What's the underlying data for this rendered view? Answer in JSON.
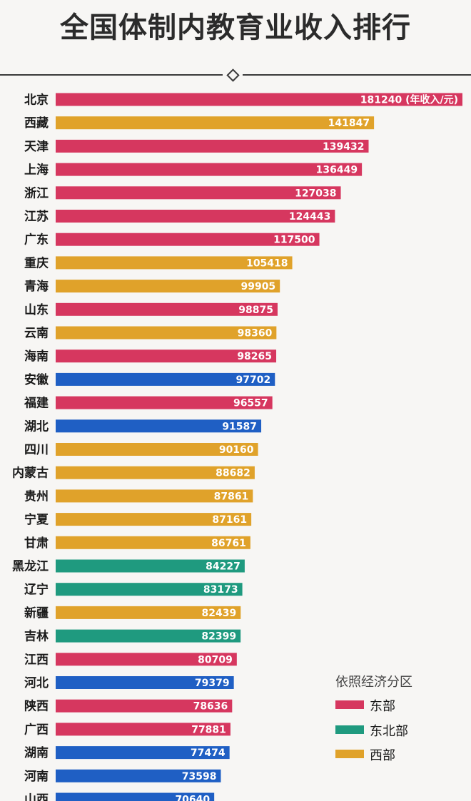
{
  "title": "全国体制内教育业收入排行",
  "colors": {
    "east": "#d6375f",
    "central": "#1f5fc4",
    "northeast": "#1f9a7f",
    "west": "#e0a22a"
  },
  "legend": {
    "title": "依照经济分区",
    "items": [
      {
        "label": "东部",
        "color": "#d6375f"
      },
      {
        "label": "东北部",
        "color": "#1f9a7f"
      },
      {
        "label": "西部",
        "color": "#e0a22a"
      }
    ]
  },
  "chart_data": {
    "type": "bar",
    "orientation": "horizontal",
    "title": "全国体制内教育业收入排行",
    "unit_note": "(年收入/元)",
    "xlim": [
      0,
      181240
    ],
    "grid": false,
    "legend_position": "bottom-right",
    "categories": [
      "北京",
      "西藏",
      "天津",
      "上海",
      "浙江",
      "江苏",
      "广东",
      "重庆",
      "青海",
      "山东",
      "云南",
      "海南",
      "安徽",
      "福建",
      "湖北",
      "四川",
      "内蒙古",
      "贵州",
      "宁夏",
      "甘肃",
      "黑龙江",
      "辽宁",
      "新疆",
      "吉林",
      "江西",
      "河北",
      "陕西",
      "广西",
      "湖南",
      "河南",
      "山西"
    ],
    "values": [
      181240,
      141847,
      139432,
      136449,
      127038,
      124443,
      117500,
      105418,
      99905,
      98875,
      98360,
      98265,
      97702,
      96557,
      91587,
      90160,
      88682,
      87861,
      87161,
      86761,
      84227,
      83173,
      82439,
      82399,
      80709,
      79379,
      78636,
      77881,
      77474,
      73598,
      70640
    ],
    "region": [
      "east",
      "west",
      "east",
      "east",
      "east",
      "east",
      "east",
      "west",
      "west",
      "east",
      "west",
      "east",
      "central",
      "east",
      "central",
      "west",
      "west",
      "west",
      "west",
      "west",
      "northeast",
      "northeast",
      "west",
      "northeast",
      "east",
      "central",
      "east",
      "east",
      "central",
      "central",
      "central"
    ]
  }
}
